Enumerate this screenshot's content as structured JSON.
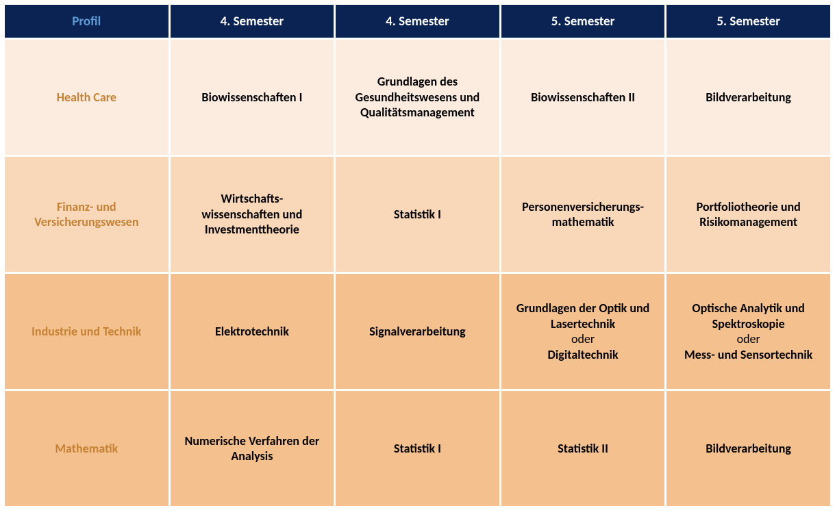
{
  "table": {
    "colors": {
      "header_bg": "#0a2352",
      "header_first_text": "#5b9bd5",
      "header_other_text": "#ffffff",
      "row_bg": [
        "#fcece0",
        "#f9d7b9",
        "#f4c08e",
        "#f4c08e"
      ],
      "profile_text": "#c58234",
      "content_text": "#000000"
    },
    "fontsize": {
      "header": 19,
      "body": 18
    },
    "columns": [
      "Profil",
      "4. Semester",
      "4. Semester",
      "5. Semester",
      "5. Semester"
    ],
    "rows": [
      {
        "profile": "Health Care",
        "cells": [
          [
            {
              "text": "Biowissenschaften I",
              "bold": true
            }
          ],
          [
            {
              "text": "Grundlagen des Gesundheitswesens und Qualitätsmanagement",
              "bold": true
            }
          ],
          [
            {
              "text": "Biowissenschaften II",
              "bold": true
            }
          ],
          [
            {
              "text": "Bildverarbeitung",
              "bold": true
            }
          ]
        ]
      },
      {
        "profile": "Finanz- und Versicherungswesen",
        "cells": [
          [
            {
              "text": "Wirtschafts-",
              "bold": true
            },
            {
              "text": "wissenschaften und Investmenttheorie",
              "bold": true
            }
          ],
          [
            {
              "text": "Statistik I",
              "bold": true
            }
          ],
          [
            {
              "text": "Personenversicherungs-",
              "bold": true
            },
            {
              "text": "mathematik",
              "bold": true
            }
          ],
          [
            {
              "text": "Portfoliotheorie und Risikomanagement",
              "bold": true
            }
          ]
        ]
      },
      {
        "profile": "Industrie und Technik",
        "cells": [
          [
            {
              "text": "Elektrotechnik",
              "bold": true
            }
          ],
          [
            {
              "text": "Signalverarbeitung",
              "bold": true
            }
          ],
          [
            {
              "text": "Grundlagen der Optik und Lasertechnik",
              "bold": true
            },
            {
              "text": "oder",
              "bold": false
            },
            {
              "text": "Digitaltechnik",
              "bold": true
            }
          ],
          [
            {
              "text": "Optische Analytik und Spektroskopie",
              "bold": true
            },
            {
              "text": "oder",
              "bold": false
            },
            {
              "text": "Mess- und Sensortechnik",
              "bold": true
            }
          ]
        ]
      },
      {
        "profile": "Mathematik",
        "cells": [
          [
            {
              "text": "Numerische Verfahren der Analysis",
              "bold": true
            }
          ],
          [
            {
              "text": "Statistik I",
              "bold": true
            }
          ],
          [
            {
              "text": "Statistik II",
              "bold": true
            }
          ],
          [
            {
              "text": "Bildverarbeitung",
              "bold": true
            }
          ]
        ]
      }
    ]
  }
}
